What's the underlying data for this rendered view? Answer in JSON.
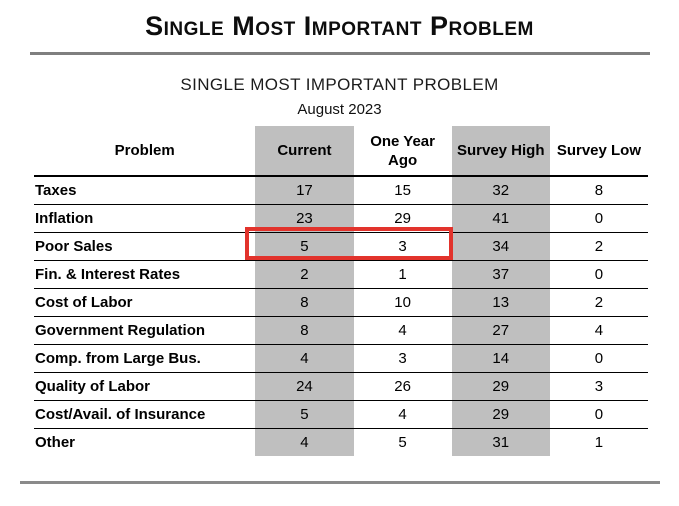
{
  "header": {
    "title": "Single Most Important Problem"
  },
  "report": {
    "subtitle": "SINGLE MOST IMPORTANT PROBLEM",
    "date": "August 2023"
  },
  "table": {
    "columns": [
      "Problem",
      "Current",
      "One Year Ago",
      "Survey High",
      "Survey Low"
    ],
    "shaded_columns": [
      "Current",
      "Survey High"
    ],
    "rows": [
      {
        "problem": "Taxes",
        "current": "17",
        "one_year_ago": "15",
        "survey_high": "32",
        "survey_low": "8"
      },
      {
        "problem": "Inflation",
        "current": "23",
        "one_year_ago": "29",
        "survey_high": "41",
        "survey_low": "0"
      },
      {
        "problem": "Poor Sales",
        "current": "5",
        "one_year_ago": "3",
        "survey_high": "34",
        "survey_low": "2"
      },
      {
        "problem": "Fin. & Interest Rates",
        "current": "2",
        "one_year_ago": "1",
        "survey_high": "37",
        "survey_low": "0"
      },
      {
        "problem": "Cost of Labor",
        "current": "8",
        "one_year_ago": "10",
        "survey_high": "13",
        "survey_low": "2"
      },
      {
        "problem": "Government Regulation",
        "current": "8",
        "one_year_ago": "4",
        "survey_high": "27",
        "survey_low": "4"
      },
      {
        "problem": "Comp. from Large Bus.",
        "current": "4",
        "one_year_ago": "3",
        "survey_high": "14",
        "survey_low": "0"
      },
      {
        "problem": "Quality of Labor",
        "current": "24",
        "one_year_ago": "26",
        "survey_high": "29",
        "survey_low": "3"
      },
      {
        "problem": "Cost/Avail. of Insurance",
        "current": "5",
        "one_year_ago": "4",
        "survey_high": "29",
        "survey_low": "0"
      },
      {
        "problem": "Other",
        "current": "4",
        "one_year_ago": "5",
        "survey_high": "31",
        "survey_low": "1"
      }
    ],
    "highlight": {
      "row": "Poor Sales",
      "row_index": 2,
      "columns": [
        "Current",
        "One Year Ago"
      ],
      "color": "#e2332c"
    }
  },
  "colors": {
    "column_shade": "#bfbfbf",
    "title_rule": "#7f7f7f",
    "footer_rule": "#8a8a8a",
    "highlight_red": "#e2332c"
  },
  "chart_data": {
    "type": "table",
    "title": "SINGLE MOST IMPORTANT PROBLEM",
    "subtitle": "August 2023",
    "columns": [
      "Problem",
      "Current",
      "One Year Ago",
      "Survey High",
      "Survey Low"
    ],
    "categories": [
      "Taxes",
      "Inflation",
      "Poor Sales",
      "Fin. & Interest Rates",
      "Cost of Labor",
      "Government Regulation",
      "Comp. from Large Bus.",
      "Quality of Labor",
      "Cost/Avail. of Insurance",
      "Other"
    ],
    "series": [
      {
        "name": "Current",
        "values": [
          17,
          23,
          5,
          2,
          8,
          8,
          4,
          24,
          5,
          4
        ]
      },
      {
        "name": "One Year Ago",
        "values": [
          15,
          29,
          3,
          1,
          10,
          4,
          3,
          26,
          4,
          5
        ]
      },
      {
        "name": "Survey High",
        "values": [
          32,
          41,
          34,
          37,
          13,
          27,
          14,
          29,
          29,
          31
        ]
      },
      {
        "name": "Survey Low",
        "values": [
          8,
          0,
          2,
          0,
          2,
          4,
          0,
          3,
          0,
          1
        ]
      }
    ]
  }
}
